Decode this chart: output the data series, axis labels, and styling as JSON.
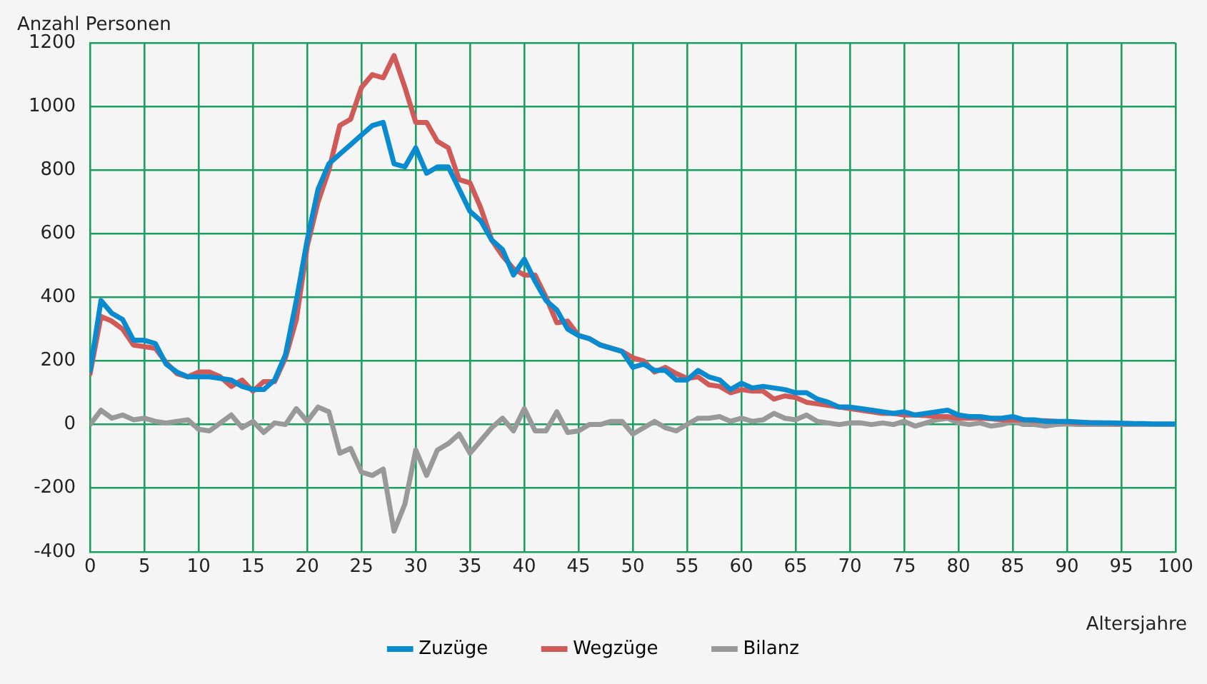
{
  "chart_data": {
    "type": "line",
    "ylabel": "Anzahl Personen",
    "xlabel": "Altersjahre",
    "x": [
      0,
      1,
      2,
      3,
      4,
      5,
      6,
      7,
      8,
      9,
      10,
      11,
      12,
      13,
      14,
      15,
      16,
      17,
      18,
      19,
      20,
      21,
      22,
      23,
      24,
      25,
      26,
      27,
      28,
      29,
      30,
      31,
      32,
      33,
      34,
      35,
      36,
      37,
      38,
      39,
      40,
      41,
      42,
      43,
      44,
      45,
      46,
      47,
      48,
      49,
      50,
      51,
      52,
      53,
      54,
      55,
      56,
      57,
      58,
      59,
      60,
      61,
      62,
      63,
      64,
      65,
      66,
      67,
      68,
      69,
      70,
      71,
      72,
      73,
      74,
      75,
      76,
      77,
      78,
      79,
      80,
      81,
      82,
      83,
      84,
      85,
      86,
      87,
      88,
      89,
      90,
      91,
      92,
      93,
      94,
      95,
      96,
      97,
      98,
      99,
      100
    ],
    "series": [
      {
        "name": "Zuzüge",
        "color": "#0a8bd0",
        "values": [
          170,
          390,
          350,
          330,
          265,
          265,
          255,
          190,
          165,
          150,
          150,
          150,
          145,
          140,
          120,
          110,
          110,
          140,
          220,
          390,
          580,
          740,
          820,
          850,
          880,
          910,
          940,
          950,
          820,
          810,
          870,
          790,
          810,
          810,
          740,
          670,
          640,
          580,
          550,
          470,
          520,
          450,
          390,
          360,
          300,
          280,
          270,
          250,
          240,
          230,
          180,
          190,
          170,
          170,
          140,
          140,
          170,
          150,
          140,
          110,
          130,
          115,
          120,
          115,
          110,
          100,
          100,
          80,
          70,
          55,
          55,
          50,
          45,
          40,
          35,
          40,
          30,
          35,
          40,
          45,
          30,
          25,
          25,
          20,
          20,
          25,
          15,
          15,
          10,
          10,
          10,
          8,
          6,
          5,
          5,
          4,
          3,
          3,
          2,
          2,
          2
        ]
      },
      {
        "name": "Wegzüge",
        "color": "#d05a57",
        "values": [
          160,
          340,
          325,
          300,
          250,
          245,
          240,
          195,
          160,
          150,
          165,
          165,
          150,
          120,
          140,
          105,
          135,
          135,
          210,
          330,
          560,
          700,
          800,
          940,
          960,
          1060,
          1100,
          1090,
          1160,
          1060,
          950,
          950,
          890,
          870,
          770,
          760,
          680,
          580,
          530,
          490,
          470,
          470,
          400,
          320,
          325,
          280,
          270,
          250,
          240,
          230,
          210,
          200,
          165,
          180,
          160,
          145,
          150,
          125,
          120,
          100,
          110,
          105,
          105,
          80,
          90,
          85,
          70,
          65,
          60,
          55,
          50,
          45,
          40,
          35,
          35,
          30,
          30,
          28,
          25,
          25,
          20,
          20,
          20,
          18,
          15,
          15,
          15,
          12,
          12,
          10,
          8,
          6,
          6,
          5,
          4,
          3,
          3,
          null,
          null,
          null,
          null
        ]
      },
      {
        "name": "Bilanz",
        "color": "#999999",
        "values": [
          0,
          45,
          20,
          30,
          15,
          20,
          10,
          5,
          10,
          15,
          -15,
          -20,
          5,
          30,
          -10,
          10,
          -25,
          5,
          0,
          50,
          10,
          55,
          40,
          -90,
          -75,
          -150,
          -160,
          -140,
          -335,
          -250,
          -80,
          -160,
          -80,
          -60,
          -30,
          -90,
          -50,
          -10,
          20,
          -20,
          50,
          -20,
          -20,
          40,
          -25,
          -20,
          0,
          0,
          10,
          10,
          -30,
          -10,
          10,
          -10,
          -20,
          0,
          20,
          20,
          25,
          10,
          20,
          10,
          15,
          35,
          20,
          15,
          30,
          10,
          5,
          0,
          5,
          5,
          0,
          5,
          0,
          10,
          -5,
          5,
          15,
          20,
          5,
          0,
          5,
          -5,
          0,
          10,
          0,
          0,
          -5,
          0,
          2,
          0,
          0,
          0,
          0,
          0,
          0,
          0,
          0,
          0,
          0
        ]
      }
    ],
    "xlim": [
      0,
      100
    ],
    "xticks": [
      0,
      5,
      10,
      15,
      20,
      25,
      30,
      35,
      40,
      45,
      50,
      55,
      60,
      65,
      70,
      75,
      80,
      85,
      90,
      95,
      100
    ],
    "ylim": [
      -400,
      1200
    ],
    "yticks": [
      -400,
      -200,
      0,
      200,
      400,
      600,
      800,
      1000,
      1200
    ],
    "grid": true,
    "legend": "bottom",
    "marker": "none",
    "line_style": "solid"
  }
}
